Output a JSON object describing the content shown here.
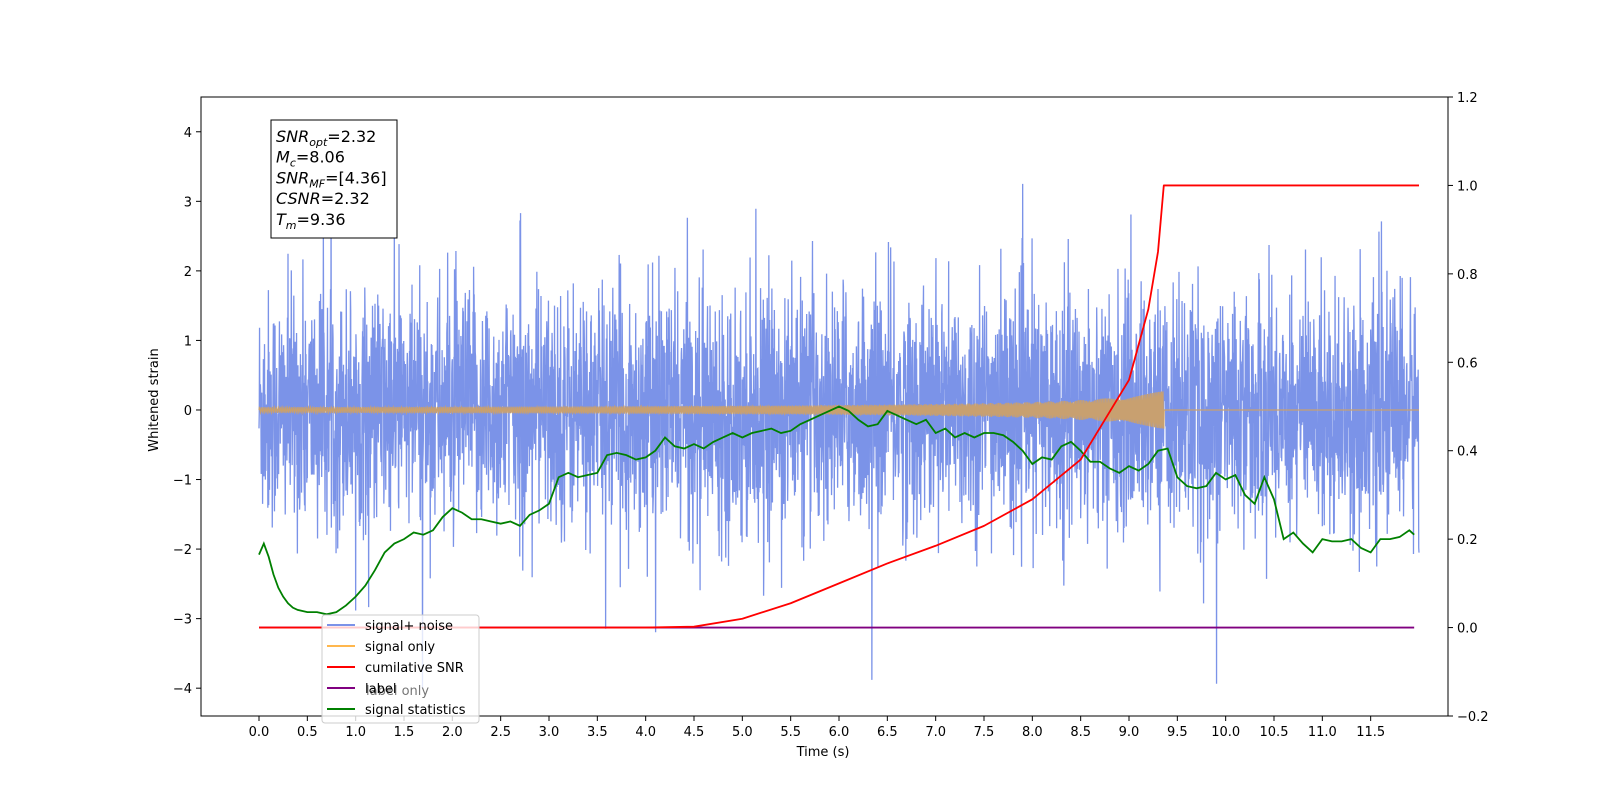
{
  "chart_data": {
    "type": "line",
    "title": "",
    "xlabel": "Time (s)",
    "ylabel": "Whitened strain",
    "xlim": [
      -0.6,
      12.3
    ],
    "ylim": [
      -4.4,
      4.5
    ],
    "y2lim": [
      -0.2,
      1.2
    ],
    "x_ticks": [
      0.0,
      0.5,
      1.0,
      1.5,
      2.0,
      2.5,
      3.0,
      3.5,
      4.0,
      4.5,
      5.0,
      5.5,
      6.0,
      6.5,
      7.0,
      7.5,
      8.0,
      8.5,
      9.0,
      9.5,
      10.0,
      10.5,
      11.0,
      11.5
    ],
    "x_tick_labels": [
      "0.0",
      "0.5",
      "1.0",
      "1.5",
      "2.0",
      "2.5",
      "3.0",
      "3.5",
      "4.0",
      "4.5",
      "5.0",
      "5.5",
      "6.0",
      "6.5",
      "7.0",
      "7.5",
      "8.0",
      "8.5",
      "9.0",
      "9.5",
      "10.0",
      "10.5",
      "11.0",
      "11.5"
    ],
    "y_ticks": [
      -4,
      -3,
      -2,
      -1,
      0,
      1,
      2,
      3,
      4
    ],
    "y_tick_labels": [
      "−4",
      "−3",
      "−2",
      "−1",
      "0",
      "1",
      "2",
      "3",
      "4"
    ],
    "y2_ticks": [
      -0.2,
      0.0,
      0.2,
      0.4,
      0.6,
      0.8,
      1.0,
      1.2
    ],
    "y2_tick_labels": [
      "−0.2",
      "0.0",
      "0.2",
      "0.4",
      "0.6",
      "0.8",
      "1.0",
      "1.2"
    ],
    "grid": false,
    "legend_position": "lower-left",
    "info_box": {
      "lines": [
        {
          "base": "SNR",
          "sub": "opt",
          "rest": "=2.32"
        },
        {
          "base": "M",
          "sub": "c",
          "rest": "=8.06"
        },
        {
          "base": "SNR",
          "sub": "MF",
          "rest": "=[4.36]"
        },
        {
          "base": "CSNR",
          "sub": "",
          "rest": "=2.32"
        },
        {
          "base": "T",
          "sub": "m",
          "rest": "=9.36"
        }
      ]
    },
    "series": [
      {
        "name": "signal+ noise",
        "color": "#7b93e8",
        "axis": "left",
        "x_range": [
          0.0,
          12.0
        ],
        "noise_envelope": {
          "typical": [
            -2.0,
            2.0
          ],
          "extremes": [
            -4.0,
            4.1
          ]
        },
        "description": "noisy whitened strain"
      },
      {
        "name": "signal only",
        "color": "#ffb74d",
        "axis": "left",
        "chirp": {
          "start": 0.0,
          "merger": 9.36,
          "end": 12.0,
          "max_amplitude": 0.35
        }
      },
      {
        "name": "cumilative SNR",
        "color": "#ff0000",
        "axis": "right",
        "x": [
          0.0,
          4.0,
          4.5,
          5.0,
          5.5,
          6.0,
          6.5,
          7.0,
          7.5,
          8.0,
          8.5,
          9.0,
          9.2,
          9.3,
          9.36,
          12.0
        ],
        "y": [
          0.0,
          0.0,
          0.002,
          0.02,
          0.055,
          0.1,
          0.145,
          0.185,
          0.23,
          0.29,
          0.38,
          0.56,
          0.72,
          0.85,
          1.0,
          1.0
        ]
      },
      {
        "name": "label",
        "color": "#800080",
        "axis": "right",
        "x": [
          0.0,
          11.95
        ],
        "y": [
          0.0,
          0.0
        ]
      },
      {
        "name": "label only",
        "color": "#ffb74d",
        "axis": "right",
        "x": [],
        "y": []
      },
      {
        "name": "signal statistics",
        "color": "#008000",
        "axis": "right",
        "x": [
          0.0,
          0.05,
          0.1,
          0.15,
          0.2,
          0.25,
          0.3,
          0.35,
          0.4,
          0.5,
          0.6,
          0.7,
          0.8,
          0.9,
          1.0,
          1.1,
          1.2,
          1.3,
          1.4,
          1.5,
          1.6,
          1.7,
          1.8,
          1.9,
          2.0,
          2.1,
          2.2,
          2.3,
          2.4,
          2.5,
          2.6,
          2.7,
          2.8,
          2.9,
          3.0,
          3.1,
          3.2,
          3.3,
          3.4,
          3.5,
          3.6,
          3.7,
          3.8,
          3.9,
          4.0,
          4.1,
          4.2,
          4.3,
          4.4,
          4.5,
          4.6,
          4.7,
          4.8,
          4.9,
          5.0,
          5.1,
          5.2,
          5.3,
          5.4,
          5.5,
          5.6,
          5.7,
          5.8,
          5.9,
          6.0,
          6.1,
          6.2,
          6.3,
          6.4,
          6.5,
          6.6,
          6.7,
          6.8,
          6.9,
          7.0,
          7.1,
          7.2,
          7.3,
          7.4,
          7.5,
          7.6,
          7.7,
          7.8,
          7.9,
          8.0,
          8.1,
          8.2,
          8.3,
          8.4,
          8.5,
          8.6,
          8.7,
          8.8,
          8.9,
          9.0,
          9.1,
          9.2,
          9.3,
          9.4,
          9.5,
          9.6,
          9.7,
          9.8,
          9.9,
          10.0,
          10.1,
          10.2,
          10.3,
          10.4,
          10.5,
          10.6,
          10.7,
          10.8,
          10.9,
          11.0,
          11.1,
          11.2,
          11.3,
          11.4,
          11.5,
          11.6,
          11.7,
          11.8,
          11.9,
          11.95
        ],
        "y": [
          0.165,
          0.19,
          0.16,
          0.12,
          0.09,
          0.07,
          0.055,
          0.045,
          0.04,
          0.035,
          0.035,
          0.03,
          0.035,
          0.05,
          0.07,
          0.095,
          0.13,
          0.17,
          0.19,
          0.2,
          0.215,
          0.21,
          0.22,
          0.25,
          0.27,
          0.26,
          0.245,
          0.245,
          0.24,
          0.235,
          0.24,
          0.23,
          0.255,
          0.265,
          0.28,
          0.34,
          0.35,
          0.34,
          0.345,
          0.35,
          0.39,
          0.395,
          0.39,
          0.38,
          0.385,
          0.4,
          0.43,
          0.41,
          0.405,
          0.415,
          0.405,
          0.42,
          0.43,
          0.44,
          0.43,
          0.44,
          0.445,
          0.45,
          0.44,
          0.445,
          0.46,
          0.47,
          0.48,
          0.49,
          0.5,
          0.49,
          0.47,
          0.455,
          0.46,
          0.49,
          0.48,
          0.47,
          0.46,
          0.47,
          0.44,
          0.45,
          0.43,
          0.44,
          0.43,
          0.44,
          0.44,
          0.435,
          0.42,
          0.4,
          0.37,
          0.385,
          0.38,
          0.41,
          0.42,
          0.4,
          0.375,
          0.375,
          0.36,
          0.35,
          0.365,
          0.355,
          0.37,
          0.4,
          0.405,
          0.34,
          0.32,
          0.315,
          0.32,
          0.35,
          0.335,
          0.345,
          0.3,
          0.28,
          0.34,
          0.29,
          0.2,
          0.215,
          0.19,
          0.17,
          0.2,
          0.195,
          0.195,
          0.2,
          0.18,
          0.17,
          0.2,
          0.2,
          0.205,
          0.22,
          0.21
        ]
      }
    ]
  }
}
